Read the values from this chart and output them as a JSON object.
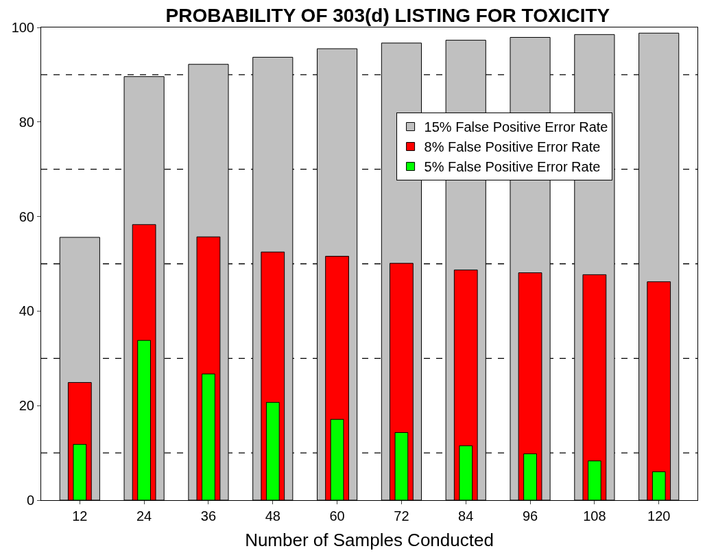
{
  "chart_data": {
    "type": "bar",
    "title": "PROBABILITY OF 303(d) LISTING FOR TOXICITY",
    "xlabel": "Number of Samples Conducted",
    "categories": [
      "12",
      "24",
      "36",
      "48",
      "60",
      "72",
      "84",
      "96",
      "108",
      "120"
    ],
    "series": [
      {
        "name": "15% False Positive Error Rate",
        "color": "#c0c0c0",
        "values": [
          55.6,
          89.6,
          92.2,
          93.7,
          95.5,
          96.7,
          97.3,
          97.9,
          98.5,
          98.8
        ]
      },
      {
        "name": "8% False Positive Error Rate",
        "color": "#ff0000",
        "values": [
          24.9,
          58.3,
          55.7,
          52.5,
          51.6,
          50.1,
          48.7,
          48.1,
          47.7,
          46.2
        ]
      },
      {
        "name": "5% False Positive Error Rate",
        "color": "#00ff00",
        "values": [
          11.8,
          33.8,
          26.7,
          20.7,
          17.1,
          14.3,
          11.5,
          9.8,
          8.3,
          6.0
        ]
      }
    ],
    "ylim": [
      0,
      100
    ],
    "yticks": [
      0,
      20,
      40,
      60,
      80,
      100
    ],
    "ref_lines": [
      {
        "axis": "y",
        "value": 10,
        "line_style": "dashed",
        "color": "#000000"
      },
      {
        "axis": "y",
        "value": 30,
        "line_style": "dashed",
        "color": "#000000"
      },
      {
        "axis": "y",
        "value": 50,
        "line_style": "dashed",
        "color": "#000000"
      },
      {
        "axis": "y",
        "value": 70,
        "line_style": "dashed",
        "color": "#000000"
      },
      {
        "axis": "y",
        "value": 90,
        "line_style": "dashed",
        "color": "#000000"
      }
    ],
    "legend": "top right",
    "grid": false
  }
}
